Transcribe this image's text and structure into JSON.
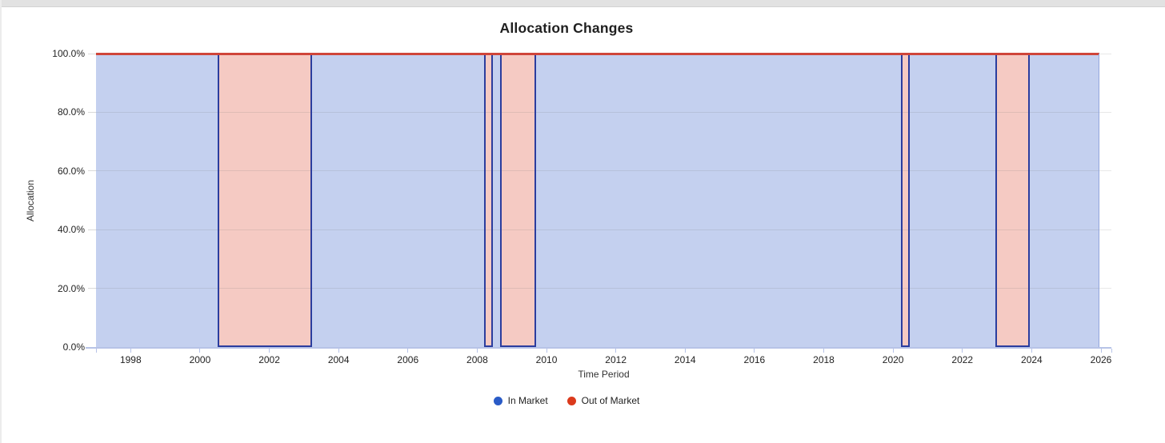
{
  "header": {
    "title": "Allocation Changes"
  },
  "chart_data": {
    "type": "area",
    "stacked": true,
    "title": "Allocation Changes",
    "xlabel": "Time Period",
    "ylabel": "Allocation",
    "x_domain": [
      1997.0,
      2026.3
    ],
    "x_ticks": [
      1998,
      2000,
      2002,
      2004,
      2006,
      2008,
      2010,
      2012,
      2014,
      2016,
      2018,
      2020,
      2022,
      2024,
      2026
    ],
    "ylim": [
      0,
      100
    ],
    "y_ticks": [
      {
        "value": 0,
        "label": "0.0%"
      },
      {
        "value": 20,
        "label": "20.0%"
      },
      {
        "value": 40,
        "label": "40.0%"
      },
      {
        "value": 60,
        "label": "60.0%"
      },
      {
        "value": 80,
        "label": "80.0%"
      },
      {
        "value": 100,
        "label": "100.0%"
      }
    ],
    "grid": true,
    "legend_position": "bottom",
    "series": [
      {
        "name": "In Market",
        "legend_color": "#2a5bc7",
        "fill": "rgba(42,86,198,0.28)",
        "line_color": "#2b3d9e",
        "value_when_active": 100
      },
      {
        "name": "Out of Market",
        "legend_color": "#db3a1c",
        "fill": "rgba(217,58,32,0.27)",
        "line_color": "#d0453a",
        "value_when_active": 100
      }
    ],
    "segments": [
      {
        "series": "In Market",
        "start": 1997.0,
        "end": 2000.53,
        "allocation_pct": 100
      },
      {
        "series": "Out of Market",
        "start": 2000.53,
        "end": 2003.22,
        "allocation_pct": 100
      },
      {
        "series": "In Market",
        "start": 2003.22,
        "end": 2008.23,
        "allocation_pct": 100
      },
      {
        "series": "Out of Market",
        "start": 2008.23,
        "end": 2008.42,
        "allocation_pct": 100
      },
      {
        "series": "In Market",
        "start": 2008.42,
        "end": 2008.69,
        "allocation_pct": 100
      },
      {
        "series": "Out of Market",
        "start": 2008.69,
        "end": 2009.68,
        "allocation_pct": 100
      },
      {
        "series": "In Market",
        "start": 2009.68,
        "end": 2020.25,
        "allocation_pct": 100
      },
      {
        "series": "Out of Market",
        "start": 2020.25,
        "end": 2020.45,
        "allocation_pct": 100
      },
      {
        "series": "In Market",
        "start": 2020.45,
        "end": 2022.98,
        "allocation_pct": 100
      },
      {
        "series": "Out of Market",
        "start": 2022.98,
        "end": 2023.93,
        "allocation_pct": 100
      },
      {
        "series": "In Market",
        "start": 2023.93,
        "end": 2025.95,
        "allocation_pct": 100
      }
    ]
  }
}
